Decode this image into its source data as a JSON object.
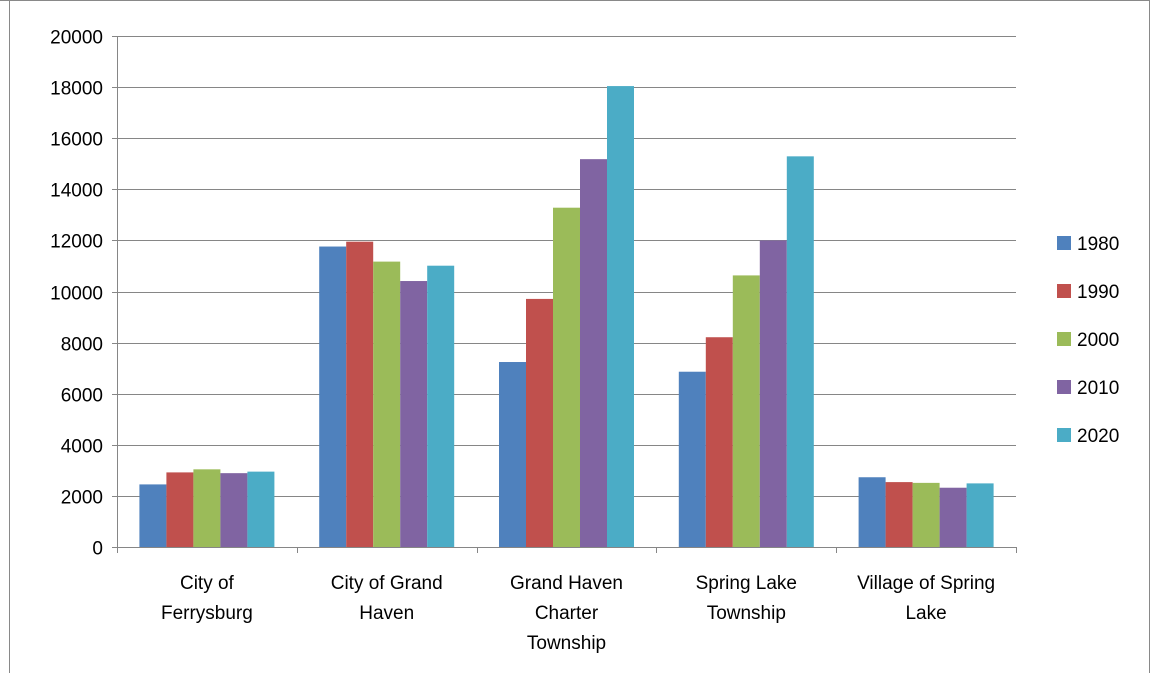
{
  "chart_data": {
    "type": "bar",
    "title": "",
    "xlabel": "",
    "ylabel": "",
    "ylim": [
      0,
      20000
    ],
    "yticks": [
      0,
      2000,
      4000,
      6000,
      8000,
      10000,
      12000,
      14000,
      16000,
      18000,
      20000
    ],
    "grid": "horizontal",
    "legend_position": "right",
    "categories": [
      [
        "City of",
        "Ferrysburg"
      ],
      [
        "City of Grand",
        "Haven"
      ],
      [
        "Grand Haven",
        "Charter",
        "Township"
      ],
      [
        "Spring Lake",
        "Township"
      ],
      [
        "Village of Spring",
        "Lake"
      ]
    ],
    "series": [
      {
        "name": "1980",
        "color": "#4F81BD",
        "values": [
          2450,
          11760,
          7240,
          6860,
          2730
        ]
      },
      {
        "name": "1990",
        "color": "#C0504D",
        "values": [
          2920,
          11950,
          9710,
          8210,
          2540
        ]
      },
      {
        "name": "2000",
        "color": "#9BBB59",
        "values": [
          3040,
          11170,
          13280,
          10630,
          2510
        ]
      },
      {
        "name": "2010",
        "color": "#8064A2",
        "values": [
          2890,
          10410,
          15180,
          12000,
          2320
        ]
      },
      {
        "name": "2020",
        "color": "#4BACC6",
        "values": [
          2950,
          11010,
          18040,
          15290,
          2490
        ]
      }
    ]
  }
}
